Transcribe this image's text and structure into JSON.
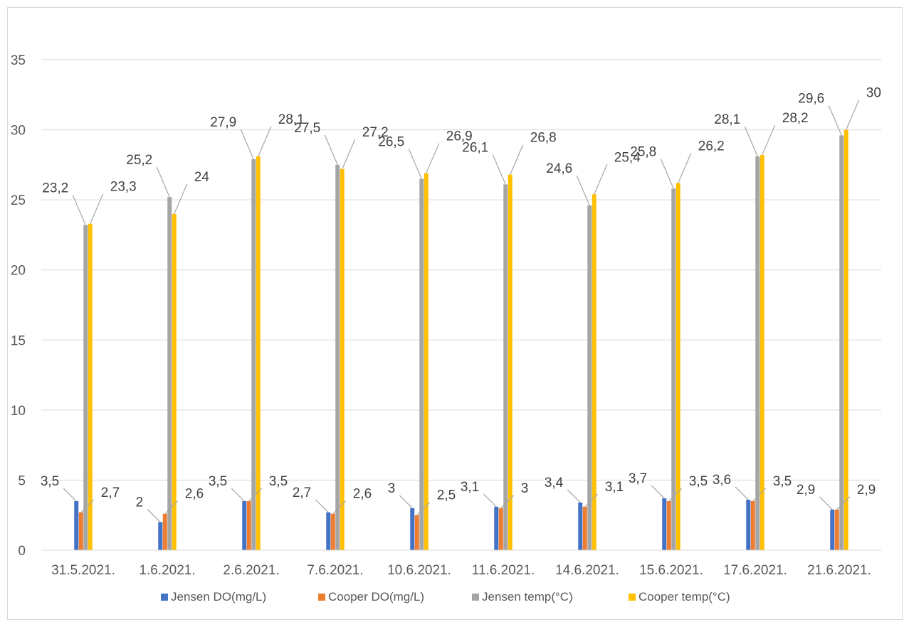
{
  "chart_data": {
    "type": "bar",
    "title": "",
    "xlabel": "",
    "ylabel": "",
    "ylim": [
      0,
      35
    ],
    "yticks": [
      0,
      5,
      10,
      15,
      20,
      25,
      30,
      35
    ],
    "grid": true,
    "legend_position": "bottom",
    "categories": [
      "31.5.2021.",
      "1.6.2021.",
      "2.6.2021.",
      "7.6.2021.",
      "10.6.2021.",
      "11.6.2021.",
      "14.6.2021.",
      "15.6.2021.",
      "17.6.2021.",
      "21.6.2021."
    ],
    "series": [
      {
        "name": "Jensen DO(mg/L)",
        "color": "#4472c4",
        "values": [
          3.5,
          2,
          3.5,
          2.7,
          3,
          3.1,
          3.4,
          3.7,
          3.6,
          2.9
        ],
        "labels": [
          "3,5",
          "2",
          "3,5",
          "2,7",
          "3",
          "3,1",
          "3,4",
          "3,7",
          "3,6",
          "2,9"
        ]
      },
      {
        "name": "Cooper DO(mg/L)",
        "color": "#ed7d31",
        "values": [
          2.7,
          2.6,
          3.5,
          2.6,
          2.5,
          3,
          3.1,
          3.5,
          3.5,
          2.9
        ],
        "labels": [
          "2,7",
          "2,6",
          "3,5",
          "2,6",
          "2,5",
          "3",
          "3,1",
          "3,5",
          "3,5",
          "2,9"
        ]
      },
      {
        "name": "Jensen temp(°C)",
        "color": "#a5a5a5",
        "values": [
          23.2,
          25.2,
          27.9,
          27.5,
          26.5,
          26.1,
          24.6,
          25.8,
          28.1,
          29.6
        ],
        "labels": [
          "23,2",
          "25,2",
          "27,9",
          "27,5",
          "26,5",
          "26,1",
          "24,6",
          "25,8",
          "28,1",
          "29,6"
        ]
      },
      {
        "name": "Cooper temp(°C)",
        "color": "#ffc000",
        "values": [
          23.3,
          24,
          28.1,
          27.2,
          26.9,
          26.8,
          25.4,
          26.2,
          28.2,
          30
        ],
        "labels": [
          "23,3",
          "24",
          "28,1",
          "27,2",
          "26,9",
          "26,8",
          "25,4",
          "26,2",
          "28,2",
          "30"
        ]
      }
    ]
  }
}
